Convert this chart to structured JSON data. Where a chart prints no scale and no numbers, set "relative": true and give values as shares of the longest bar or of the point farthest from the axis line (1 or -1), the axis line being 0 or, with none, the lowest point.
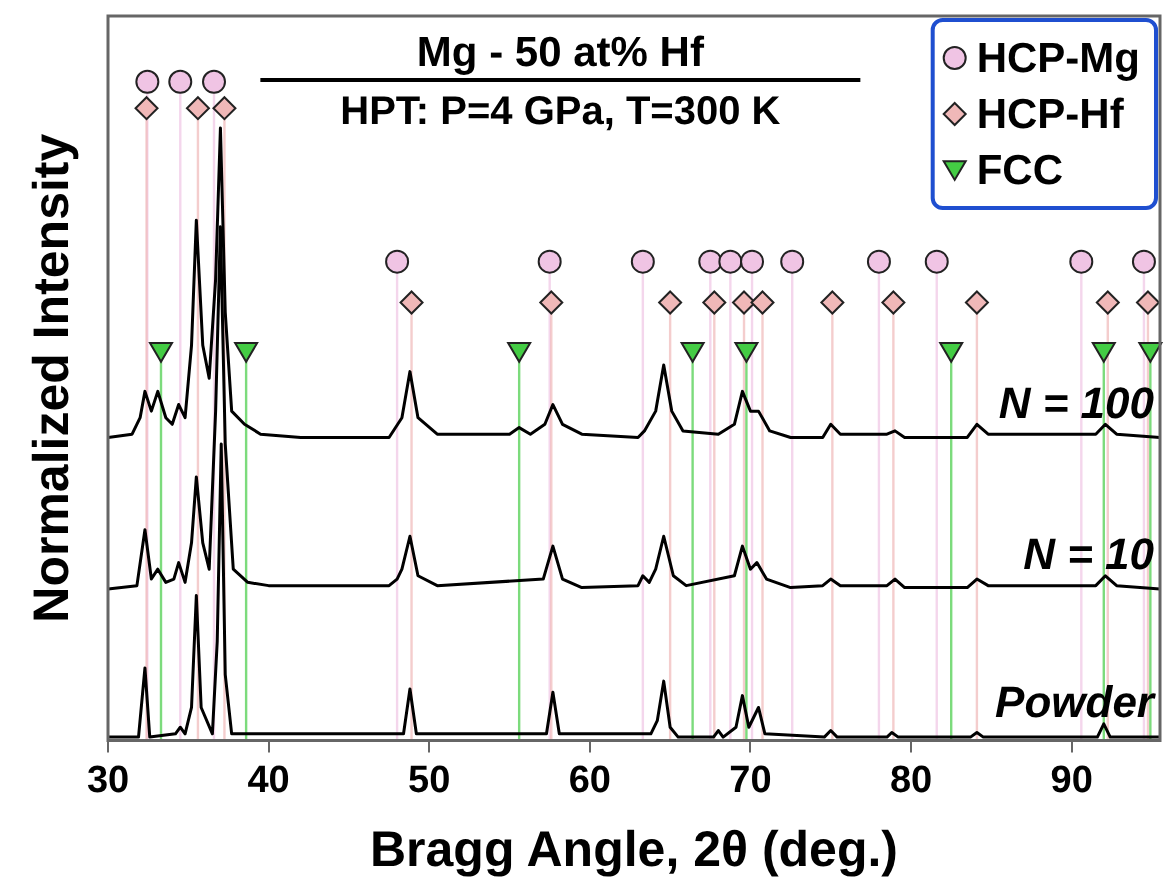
{
  "chart_data": {
    "type": "line",
    "title": "Mg - 50 at% Hf",
    "subtitle": "HPT: P=4 GPa, T=300 K",
    "xlabel": "Bragg Angle, 2θ (deg.)",
    "ylabel": "Normalized Intensity",
    "relative": true,
    "xlim": [
      30,
      95.5
    ],
    "xticks": [
      30,
      40,
      50,
      60,
      70,
      80,
      90
    ],
    "grid": false,
    "legend": "top right",
    "line_style": "solid",
    "series": [
      {
        "name": "N = 100",
        "type": "line",
        "color": "#000000",
        "x": [
          30,
          31.5,
          32.0,
          32.3,
          32.7,
          33.1,
          33.6,
          34.0,
          34.4,
          34.8,
          35.2,
          35.5,
          35.9,
          36.3,
          36.7,
          37.0,
          37.3,
          37.7,
          38.5,
          39.5,
          42,
          47.5,
          48.3,
          48.8,
          49.3,
          50.5,
          55,
          55.6,
          56.3,
          57.2,
          57.7,
          58.3,
          59.5,
          63,
          63.4,
          64.1,
          64.6,
          65.1,
          65.8,
          68,
          69,
          69.5,
          70.0,
          70.5,
          71.2,
          72.5,
          74.5,
          75.0,
          75.6,
          78.5,
          79,
          79.6,
          83.5,
          84.1,
          84.8,
          91.5,
          92.1,
          92.8,
          95.5
        ],
        "values": [
          0.46,
          0.465,
          0.49,
          0.53,
          0.5,
          0.53,
          0.49,
          0.48,
          0.51,
          0.49,
          0.6,
          0.79,
          0.6,
          0.55,
          0.7,
          0.93,
          0.65,
          0.5,
          0.48,
          0.465,
          0.46,
          0.46,
          0.49,
          0.56,
          0.49,
          0.465,
          0.465,
          0.475,
          0.465,
          0.48,
          0.51,
          0.48,
          0.465,
          0.46,
          0.47,
          0.5,
          0.57,
          0.5,
          0.47,
          0.465,
          0.48,
          0.53,
          0.5,
          0.5,
          0.47,
          0.46,
          0.46,
          0.48,
          0.465,
          0.465,
          0.47,
          0.46,
          0.46,
          0.48,
          0.465,
          0.465,
          0.48,
          0.465,
          0.46
        ]
      },
      {
        "name": "N = 10",
        "type": "line",
        "color": "#000000",
        "x": [
          30,
          31.8,
          32.3,
          32.7,
          33.1,
          33.6,
          34.1,
          34.4,
          34.8,
          35.2,
          35.5,
          35.9,
          36.3,
          36.7,
          37.0,
          37.3,
          37.8,
          38.7,
          40,
          47.5,
          48.0,
          48.3,
          48.8,
          49.3,
          50.5,
          57.1,
          57.7,
          58.3,
          59.5,
          63,
          63.3,
          63.7,
          64.1,
          64.6,
          65.2,
          66,
          69,
          69.5,
          70.0,
          70.4,
          71.0,
          72.5,
          74.5,
          75.0,
          75.6,
          78.5,
          79,
          79.6,
          83.5,
          84.1,
          84.8,
          91.5,
          92.1,
          92.8,
          95.5
        ],
        "values": [
          0.23,
          0.235,
          0.32,
          0.245,
          0.26,
          0.24,
          0.245,
          0.27,
          0.24,
          0.3,
          0.4,
          0.3,
          0.26,
          0.5,
          0.78,
          0.45,
          0.26,
          0.24,
          0.235,
          0.235,
          0.245,
          0.26,
          0.31,
          0.25,
          0.235,
          0.245,
          0.295,
          0.245,
          0.232,
          0.235,
          0.25,
          0.24,
          0.26,
          0.31,
          0.25,
          0.235,
          0.25,
          0.295,
          0.26,
          0.27,
          0.245,
          0.232,
          0.235,
          0.245,
          0.235,
          0.235,
          0.245,
          0.232,
          0.232,
          0.245,
          0.235,
          0.235,
          0.25,
          0.235,
          0.23
        ]
      },
      {
        "name": "Powder",
        "type": "line",
        "color": "#000000",
        "x": [
          30,
          31.9,
          32.3,
          32.6,
          34.2,
          34.5,
          34.8,
          35.2,
          35.5,
          35.8,
          36.5,
          36.8,
          37.05,
          37.3,
          37.7,
          48.4,
          48.8,
          49.2,
          57.3,
          57.7,
          58.1,
          63.8,
          64.2,
          64.6,
          65.0,
          65.5,
          67.7,
          68,
          68.3,
          69.1,
          69.5,
          69.9,
          70.5,
          70.9,
          74.6,
          75,
          75.4,
          78.5,
          78.8,
          79.2,
          83.7,
          84.1,
          84.5,
          91.6,
          92.0,
          92.4,
          95.5
        ],
        "values": [
          0.005,
          0.005,
          0.11,
          0.005,
          0.01,
          0.02,
          0.01,
          0.05,
          0.22,
          0.05,
          0.01,
          0.15,
          0.45,
          0.1,
          0.01,
          0.01,
          0.078,
          0.01,
          0.01,
          0.073,
          0.01,
          0.01,
          0.03,
          0.09,
          0.02,
          0.005,
          0.005,
          0.015,
          0.005,
          0.02,
          0.068,
          0.02,
          0.05,
          0.01,
          0.005,
          0.015,
          0.005,
          0.005,
          0.012,
          0.005,
          0.005,
          0.012,
          0.005,
          0.005,
          0.025,
          0.005,
          0.005
        ]
      },
      {
        "name": "HCP-Mg",
        "type": "lollipop",
        "marker": "circle",
        "color": "#f0c4e4",
        "x": [
          32.45,
          34.5,
          36.6,
          48.0,
          57.5,
          63.3,
          67.5,
          68.75,
          70.1,
          72.6,
          78.0,
          81.6,
          90.6,
          94.5
        ],
        "values": [
          1,
          1,
          1,
          0.727,
          0.727,
          0.727,
          0.727,
          0.727,
          0.727,
          0.727,
          0.727,
          0.727,
          0.727,
          0.727
        ]
      },
      {
        "name": "HCP-Hf",
        "type": "lollipop",
        "marker": "diamond",
        "color": "#f0b8b8",
        "x": [
          32.4,
          35.6,
          37.25,
          48.9,
          57.6,
          65.0,
          67.75,
          69.6,
          70.75,
          75.1,
          78.9,
          84.1,
          92.25,
          94.75
        ],
        "values": [
          0.96,
          0.96,
          0.96,
          0.665,
          0.665,
          0.665,
          0.665,
          0.665,
          0.665,
          0.665,
          0.665,
          0.665,
          0.665,
          0.665
        ]
      },
      {
        "name": "FCC",
        "type": "lollipop",
        "marker": "triangle",
        "color": "#44cc44",
        "x": [
          33.3,
          38.6,
          55.6,
          66.4,
          69.75,
          82.5,
          92.0,
          94.9
        ],
        "values": [
          0.59,
          0.59,
          0.59,
          0.59,
          0.59,
          0.59,
          0.59,
          0.59
        ]
      }
    ]
  }
}
